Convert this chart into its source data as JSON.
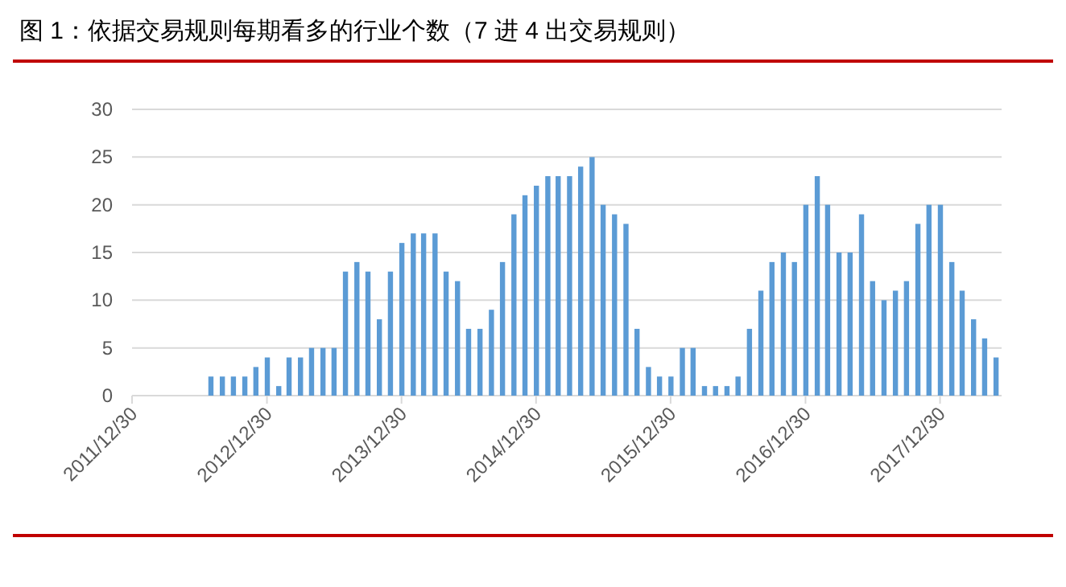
{
  "chart_data": {
    "type": "bar",
    "title": "图 1：依据交易规则每期看多的行业个数（7 进 4 出交易规则）",
    "x": [
      "2012-07-31",
      "2012-08-31",
      "2012-09-30",
      "2012-10-31",
      "2012-11-30",
      "2012-12-31",
      "2013-01-31",
      "2013-02-28",
      "2013-03-31",
      "2013-04-30",
      "2013-05-31",
      "2013-06-30",
      "2013-07-31",
      "2013-08-31",
      "2013-09-30",
      "2013-10-31",
      "2013-11-30",
      "2013-12-31",
      "2014-01-31",
      "2014-02-28",
      "2014-03-31",
      "2014-04-30",
      "2014-05-31",
      "2014-06-30",
      "2014-07-31",
      "2014-08-31",
      "2014-09-30",
      "2014-10-31",
      "2014-11-30",
      "2014-12-31",
      "2015-01-31",
      "2015-02-28",
      "2015-03-31",
      "2015-04-30",
      "2015-05-31",
      "2015-06-30",
      "2015-07-31",
      "2015-08-31",
      "2015-09-30",
      "2015-10-31",
      "2015-11-30",
      "2015-12-31",
      "2016-01-31",
      "2016-02-29",
      "2016-03-31",
      "2016-04-30",
      "2016-05-31",
      "2016-06-30",
      "2016-07-31",
      "2016-08-31",
      "2016-09-30",
      "2016-10-31",
      "2016-11-30",
      "2016-12-31",
      "2017-01-31",
      "2017-02-28",
      "2017-03-31",
      "2017-04-30",
      "2017-05-31",
      "2017-06-30",
      "2017-07-31",
      "2017-08-31",
      "2017-09-30",
      "2017-10-31",
      "2017-11-30",
      "2017-12-31",
      "2018-01-31",
      "2018-02-28",
      "2018-03-31",
      "2018-04-30",
      "2018-05-31"
    ],
    "values": [
      2,
      2,
      2,
      2,
      3,
      4,
      1,
      4,
      4,
      5,
      5,
      5,
      13,
      14,
      13,
      8,
      13,
      16,
      17,
      17,
      17,
      13,
      12,
      7,
      7,
      9,
      14,
      19,
      21,
      22,
      23,
      23,
      23,
      24,
      25,
      20,
      19,
      18,
      7,
      3,
      2,
      2,
      5,
      5,
      1,
      1,
      1,
      2,
      7,
      11,
      14,
      15,
      14,
      20,
      23,
      20,
      15,
      15,
      19,
      12,
      10,
      11,
      12,
      18,
      20,
      20,
      14,
      11,
      8,
      6,
      4
    ],
    "color": "#5b9bd5",
    "xlim": [
      "2011-12-30",
      "2018-06-15"
    ],
    "xticks": [
      {
        "value": "2011-12-30",
        "label": "2011/12/30"
      },
      {
        "value": "2012-12-30",
        "label": "2012/12/30"
      },
      {
        "value": "2013-12-30",
        "label": "2013/12/30"
      },
      {
        "value": "2014-12-30",
        "label": "2014/12/30"
      },
      {
        "value": "2015-12-30",
        "label": "2015/12/30"
      },
      {
        "value": "2016-12-30",
        "label": "2016/12/30"
      },
      {
        "value": "2017-12-30",
        "label": "2017/12/30"
      }
    ],
    "ylim": [
      0,
      30
    ],
    "yticks": [
      0,
      5,
      10,
      15,
      20,
      25,
      30
    ],
    "grid": "y"
  }
}
